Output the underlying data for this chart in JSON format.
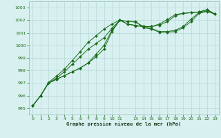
{
  "title": "Graphe pression niveau de la mer (hPa)",
  "bg_color": "#d8f0f0",
  "grid_color": "#b8d8d8",
  "line_color": "#1a6b1a",
  "xlim": [
    -0.5,
    23.5
  ],
  "ylim": [
    994.5,
    1003.5
  ],
  "yticks": [
    995,
    996,
    997,
    998,
    999,
    1000,
    1001,
    1002,
    1003
  ],
  "xticks": [
    0,
    1,
    2,
    3,
    4,
    5,
    6,
    7,
    8,
    9,
    10,
    11,
    13,
    14,
    15,
    16,
    17,
    18,
    19,
    20,
    21,
    22,
    23
  ],
  "series": [
    [
      995.2,
      996.0,
      997.0,
      997.3,
      997.6,
      997.9,
      998.2,
      998.6,
      999.1,
      999.7,
      1001.1,
      1002.0,
      1001.9,
      1001.9,
      1001.4,
      1001.3,
      1001.05,
      1001.05,
      1001.1,
      1001.4,
      1001.9,
      1002.55,
      1002.7,
      1002.5
    ],
    [
      995.2,
      996.0,
      997.0,
      997.3,
      997.6,
      997.9,
      998.2,
      998.6,
      999.3,
      1000.0,
      1001.2,
      1002.0,
      1001.9,
      1001.85,
      1001.5,
      1001.35,
      1001.1,
      1001.1,
      1001.2,
      1001.5,
      1002.1,
      1002.6,
      1002.75,
      1002.5
    ],
    [
      995.2,
      996.0,
      997.0,
      997.4,
      997.9,
      998.5,
      999.1,
      999.7,
      1000.15,
      1000.6,
      1001.35,
      1002.0,
      1001.7,
      1001.6,
      1001.5,
      1001.5,
      1001.6,
      1001.9,
      1002.35,
      1002.55,
      1002.6,
      1002.65,
      1002.85,
      1002.5
    ],
    [
      995.2,
      996.0,
      997.05,
      997.55,
      998.1,
      998.8,
      999.5,
      1000.25,
      1000.75,
      1001.3,
      1001.7,
      1002.0,
      1001.7,
      1001.55,
      1001.5,
      1001.5,
      1001.7,
      1002.05,
      1002.45,
      1002.55,
      1002.6,
      1002.65,
      1002.85,
      1002.5
    ]
  ]
}
